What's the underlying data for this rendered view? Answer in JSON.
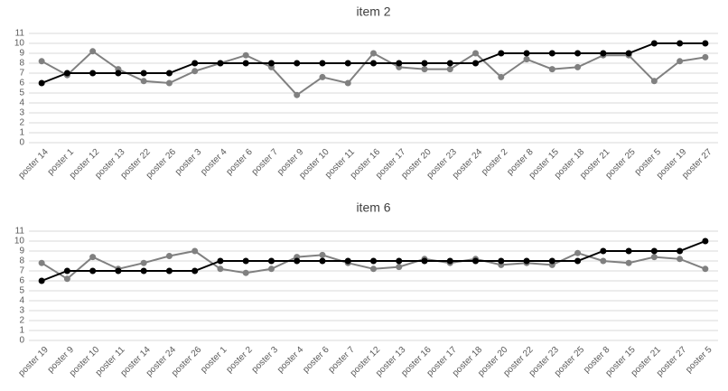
{
  "chart_data": [
    {
      "type": "line",
      "title": "item 2",
      "categories": [
        "poster 14",
        "poster 1",
        "poster 12",
        "poster 13",
        "poster 22",
        "poster 26",
        "poster 3",
        "poster 4",
        "poster 6",
        "poster 7",
        "poster 9",
        "poster 10",
        "poster 11",
        "poster 16",
        "poster 17",
        "poster 20",
        "poster 23",
        "poster 24",
        "poster 2",
        "poster 8",
        "poster 15",
        "poster 18",
        "poster 21",
        "poster 25",
        "poster 5",
        "poster 19",
        "poster 27"
      ],
      "series": [
        {
          "color": "#808080",
          "values": [
            8.2,
            6.8,
            9.2,
            7.4,
            6.2,
            6.0,
            7.2,
            8.0,
            8.8,
            7.6,
            4.8,
            6.6,
            6.0,
            9.0,
            7.6,
            7.4,
            7.4,
            9.0,
            6.6,
            8.4,
            7.4,
            7.6,
            8.8,
            8.8,
            6.2,
            8.2,
            8.6
          ]
        },
        {
          "color": "#000000",
          "values": [
            6,
            7,
            7,
            7,
            7,
            7,
            8,
            8,
            8,
            8,
            8,
            8,
            8,
            8,
            8,
            8,
            8,
            8,
            9,
            9,
            9,
            9,
            9,
            9,
            10,
            10,
            10
          ]
        }
      ],
      "ylim": [
        0,
        11
      ],
      "yticks": [
        0,
        1,
        2,
        3,
        4,
        5,
        6,
        7,
        8,
        9,
        10,
        11
      ],
      "grid": true
    },
    {
      "type": "line",
      "title": "item 6",
      "categories": [
        "poster 19",
        "poster 9",
        "poster 10",
        "poster 11",
        "poster 14",
        "poster 24",
        "poster 26",
        "poster 1",
        "poster 2",
        "poster 3",
        "poster 4",
        "poster 6",
        "poster 7",
        "poster 12",
        "poster 13",
        "poster 16",
        "poster 17",
        "poster 18",
        "poster 20",
        "poster 22",
        "poster 23",
        "poster 25",
        "poster 8",
        "poster 15",
        "poster 21",
        "poster 27",
        "poster 5"
      ],
      "series": [
        {
          "color": "#808080",
          "values": [
            7.8,
            6.2,
            8.4,
            7.2,
            7.8,
            8.5,
            9.0,
            7.2,
            6.8,
            7.2,
            8.4,
            8.6,
            7.8,
            7.2,
            7.4,
            8.2,
            7.8,
            8.2,
            7.6,
            7.8,
            7.6,
            8.8,
            8.0,
            7.8,
            8.4,
            8.2,
            7.2
          ]
        },
        {
          "color": "#000000",
          "values": [
            6,
            7,
            7,
            7,
            7,
            7,
            7,
            8,
            8,
            8,
            8,
            8,
            8,
            8,
            8,
            8,
            8,
            8,
            8,
            8,
            8,
            8,
            9,
            9,
            9,
            9,
            10
          ]
        }
      ],
      "ylim": [
        0,
        11
      ],
      "yticks": [
        0,
        1,
        2,
        3,
        4,
        5,
        6,
        7,
        8,
        9,
        10,
        11
      ],
      "grid": true
    }
  ]
}
